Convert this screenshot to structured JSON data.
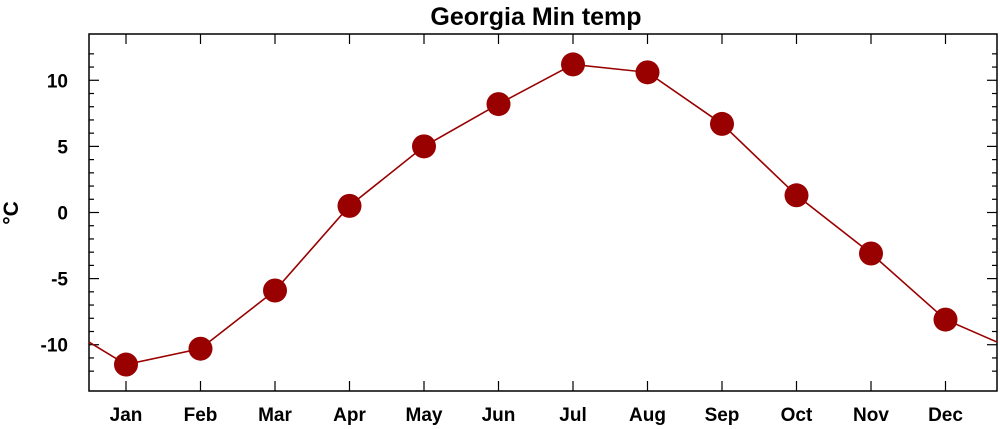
{
  "chart_data": {
    "type": "line",
    "title": "Georgia Min temp",
    "xlabel": "",
    "ylabel": "°C",
    "categories": [
      "Jan",
      "Feb",
      "Mar",
      "Apr",
      "May",
      "Jun",
      "Jul",
      "Aug",
      "Sep",
      "Oct",
      "Nov",
      "Dec"
    ],
    "series": [
      {
        "values": [
          -11.5,
          -10.3,
          -5.9,
          0.5,
          5.0,
          8.2,
          11.2,
          10.6,
          6.7,
          1.3,
          -3.1,
          -8.1
        ]
      }
    ],
    "yticks": [
      -10,
      -5,
      0,
      5,
      10
    ],
    "ytick_labels": [
      "-10",
      "-5",
      "0",
      "5",
      "10"
    ],
    "ylim": [
      -13.5,
      13.5
    ],
    "line_start_value": -9.8,
    "line_end_value": -9.8,
    "grid": false,
    "colors": {
      "series": "#990000",
      "line": "#990000",
      "axis": "#000000"
    }
  }
}
